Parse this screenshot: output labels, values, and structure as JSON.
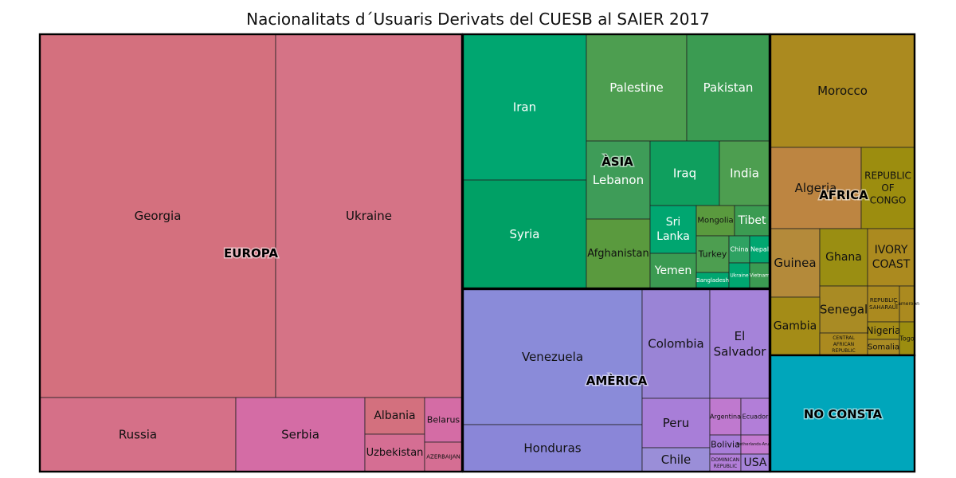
{
  "title": "Nacionalitats d´Usuaris Derivats del CUESB al SAIER 2017",
  "chart_data": {
    "type": "treemap",
    "title": "Nacionalitats d´Usuaris Derivats del CUESB al SAIER 2017",
    "groups": [
      {
        "name": "EUROPA",
        "color": "#D3707E",
        "items": [
          {
            "label": "Georgia",
            "color": "#D4707E"
          },
          {
            "label": "Ukraine",
            "color": "#D57386"
          },
          {
            "label": "Russia",
            "color": "#D57088"
          },
          {
            "label": "Serbia",
            "color": "#D46CA5"
          },
          {
            "label": "Albania",
            "color": "#D3707E"
          },
          {
            "label": "Uzbekistan",
            "color": "#D56E93"
          },
          {
            "label": "Belarus",
            "color": "#D46CA5"
          },
          {
            "label": "AZERBAIJAN",
            "color": "#D56E93"
          }
        ]
      },
      {
        "name": "ÀSIA",
        "color": "#4D9E50",
        "items": [
          {
            "label": "Iran",
            "color": "#00A670"
          },
          {
            "label": "Syria",
            "color": "#00A065"
          },
          {
            "label": "Palestine",
            "color": "#4D9E50"
          },
          {
            "label": "Pakistan",
            "color": "#3B9B52"
          },
          {
            "label": "Lebanon",
            "color": "#3E9C58"
          },
          {
            "label": "Afghanistan",
            "color": "#5A9A3E"
          },
          {
            "label": "Iraq",
            "color": "#0F9F5E"
          },
          {
            "label": "India",
            "color": "#4D9E50"
          },
          {
            "label": "Sri Lanka",
            "color": "#00A670"
          },
          {
            "label": "Mongolia",
            "color": "#5A9A3E"
          },
          {
            "label": "Tibet",
            "color": "#3B9B52"
          },
          {
            "label": "Turkey",
            "color": "#4D9E50"
          },
          {
            "label": "China",
            "color": "#2EA262"
          },
          {
            "label": "Nepal",
            "color": "#00A670"
          },
          {
            "label": "Yemen",
            "color": "#3B9B52"
          },
          {
            "label": "Bangladesh",
            "color": "#00A670"
          },
          {
            "label": "Ukraine",
            "color": "#00A670"
          },
          {
            "label": "Vietnam",
            "color": "#3B9B52"
          }
        ]
      },
      {
        "name": "AMÈRICA",
        "color": "#8A8BD9",
        "items": [
          {
            "label": "Venezuela",
            "color": "#8A8BD9"
          },
          {
            "label": "Honduras",
            "color": "#8A86D8"
          },
          {
            "label": "Colombia",
            "color": "#9A84D6"
          },
          {
            "label": "El Salvador",
            "color": "#A583D9"
          },
          {
            "label": "Peru",
            "color": "#A87ED8"
          },
          {
            "label": "Chile",
            "color": "#9A8ED8"
          },
          {
            "label": "Argentina",
            "color": "#BF79CF"
          },
          {
            "label": "Ecuador",
            "color": "#B27ED8"
          },
          {
            "label": "Bolivia",
            "color": "#A87ED8"
          },
          {
            "label": "Netherlands-Aruba",
            "color": "#C47BD0"
          },
          {
            "label": "DOMINICAN REPUBLIC",
            "color": "#B27ED8"
          },
          {
            "label": "USA",
            "color": "#A583D9"
          }
        ]
      },
      {
        "name": "AFRICA",
        "color": "#A88A1F",
        "items": [
          {
            "label": "Morocco",
            "color": "#AB8A1F"
          },
          {
            "label": "Algeria",
            "color": "#BD8541"
          },
          {
            "label": "REPUBLIC OF CONGO",
            "color": "#9C8D0F"
          },
          {
            "label": "Guinea",
            "color": "#B48A3A"
          },
          {
            "label": "Ghana",
            "color": "#9A8E12"
          },
          {
            "label": "IVORY COAST",
            "color": "#AB8A1F"
          },
          {
            "label": "Senegal",
            "color": "#A98B24"
          },
          {
            "label": "REPUBLIC SAHARAUI",
            "color": "#AB8A1F"
          },
          {
            "label": "Cameroon",
            "color": "#AB8A1F"
          },
          {
            "label": "Gambia",
            "color": "#A48C17"
          },
          {
            "label": "CENTRAL AFRICAN REPUBLIC",
            "color": "#AB8A1F"
          },
          {
            "label": "Nigeria",
            "color": "#A48C17"
          },
          {
            "label": "Somalia",
            "color": "#A98B24"
          },
          {
            "label": "Togo",
            "color": "#9C8D0F"
          }
        ]
      },
      {
        "name": "NO CONSTA",
        "color": "#00A6BB",
        "items": [
          {
            "label": "NO CONSTA",
            "color": "#00A6BB"
          }
        ]
      }
    ]
  }
}
